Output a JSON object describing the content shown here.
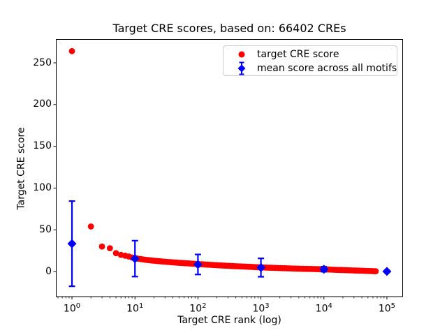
{
  "chart_data": {
    "type": "scatter",
    "title": "Target CRE scores, based on: 66402 CREs",
    "xlabel": "Target CRE rank (log)",
    "ylabel": "Target CRE score",
    "x_scale": "log",
    "x_tick_base": "10",
    "x_tick_exponents": [
      0,
      1,
      2,
      3,
      4,
      5
    ],
    "y_ticks": [
      0,
      50,
      100,
      150,
      200,
      250
    ],
    "xlim_log10": [
      -0.25,
      5.25
    ],
    "ylim": [
      -30,
      278
    ],
    "grid": false,
    "n_cres": 66402,
    "legend": {
      "position": "upper right",
      "entries": [
        {
          "label": "target CRE score",
          "marker": "circle",
          "color": "#ff0000"
        },
        {
          "label": "mean score across all motifs",
          "marker": "diamond-errorbar",
          "color": "#0000ff"
        }
      ]
    },
    "series": [
      {
        "name": "target CRE score",
        "marker": "circle",
        "color": "#ff0000",
        "rank_range": [
          1,
          66402
        ],
        "anchor_points": [
          [
            1,
            264
          ],
          [
            2,
            54
          ],
          [
            3,
            30
          ],
          [
            4,
            28
          ],
          [
            5,
            22
          ],
          [
            6,
            20
          ],
          [
            7,
            19
          ],
          [
            8,
            18
          ],
          [
            9,
            16.8
          ],
          [
            10,
            16
          ],
          [
            15,
            14
          ],
          [
            20,
            13
          ],
          [
            30,
            11.8
          ],
          [
            50,
            10.5
          ],
          [
            70,
            9.8
          ],
          [
            100,
            9
          ],
          [
            200,
            7.6
          ],
          [
            400,
            6.4
          ],
          [
            700,
            5.6
          ],
          [
            1000,
            5
          ],
          [
            2000,
            4.2
          ],
          [
            4000,
            3.4
          ],
          [
            7000,
            3
          ],
          [
            10000,
            2.7
          ],
          [
            20000,
            1.8
          ],
          [
            40000,
            1
          ],
          [
            66402,
            0.4
          ]
        ]
      },
      {
        "name": "mean score across all motifs",
        "marker": "diamond",
        "color": "#0000ff",
        "points": [
          {
            "rank": 1,
            "mean": 33.4,
            "err": 51
          },
          {
            "rank": 10,
            "mean": 15.5,
            "err": 21.5
          },
          {
            "rank": 100,
            "mean": 8.5,
            "err": 12
          },
          {
            "rank": 1000,
            "mean": 4.8,
            "err": 11
          },
          {
            "rank": 10000,
            "mean": 2.8,
            "err": 3
          },
          {
            "rank": 100000,
            "mean": 0.2,
            "err": 0.6
          }
        ]
      }
    ],
    "colors": {
      "axes": "#000000",
      "background": "#ffffff",
      "legend_border": "#cccccc",
      "red": "#ff0000",
      "blue": "#0000ff"
    }
  }
}
